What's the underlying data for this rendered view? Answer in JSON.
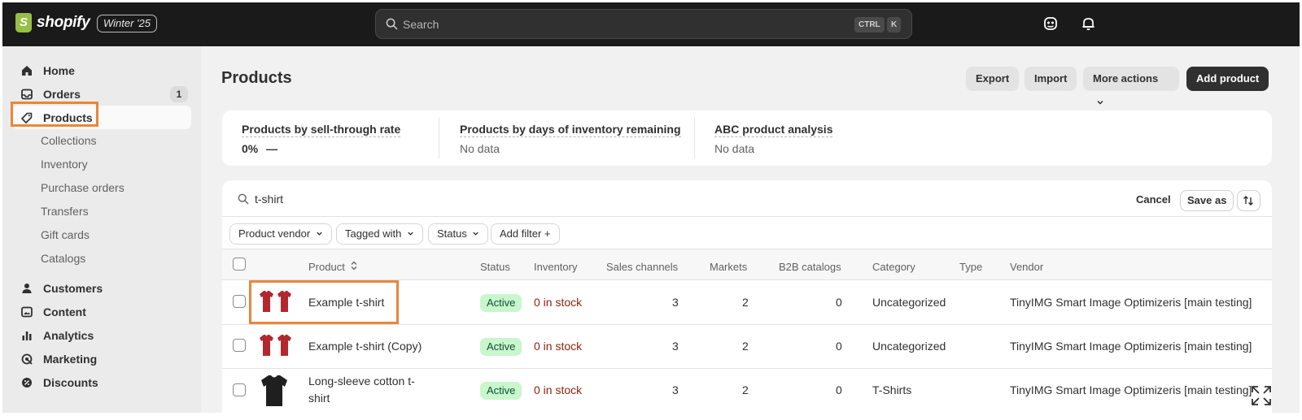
{
  "brand": {
    "name": "shopify",
    "edition": "Winter '25"
  },
  "topbar": {
    "search_placeholder": "Search",
    "shortcut": [
      "CTRL",
      "K"
    ],
    "icons": [
      "store-icon",
      "bell-icon"
    ]
  },
  "sidebar": {
    "items": [
      {
        "label": "Home",
        "icon": "home-icon"
      },
      {
        "label": "Orders",
        "icon": "inbox-icon",
        "badge": "1"
      },
      {
        "label": "Products",
        "icon": "tag-icon"
      },
      {
        "label": "Customers",
        "icon": "person-icon"
      },
      {
        "label": "Content",
        "icon": "image-icon"
      },
      {
        "label": "Analytics",
        "icon": "bar-chart-icon"
      },
      {
        "label": "Marketing",
        "icon": "target-icon"
      },
      {
        "label": "Discounts",
        "icon": "discount-icon"
      }
    ],
    "product_subitems": [
      "Collections",
      "Inventory",
      "Purchase orders",
      "Transfers",
      "Gift cards",
      "Catalogs"
    ]
  },
  "page": {
    "title": "Products",
    "actions": {
      "export": "Export",
      "import": "Import",
      "more": "More actions",
      "add": "Add product"
    }
  },
  "metrics": [
    {
      "title": "Products by sell-through rate",
      "value": "0%",
      "trend": "—"
    },
    {
      "title": "Products by days of inventory remaining",
      "value": "No data"
    },
    {
      "title": "ABC product analysis",
      "value": "No data"
    }
  ],
  "table_toolbar": {
    "query": "t-shirt",
    "cancel": "Cancel",
    "save_as": "Save as",
    "filters": [
      "Product vendor",
      "Tagged with",
      "Status"
    ],
    "add_filter": "Add filter +"
  },
  "table": {
    "headers": [
      "Product",
      "Status",
      "Inventory",
      "Sales channels",
      "Markets",
      "B2B catalogs",
      "Category",
      "Type",
      "Vendor"
    ],
    "sort_icon": "sort-icon",
    "rows": [
      {
        "product": "Example t-shirt",
        "thumb": "red-tshirts",
        "status": "Active",
        "inventory": "0 in stock",
        "sales_channels": "3",
        "markets": "2",
        "b2b": "0",
        "category": "Uncategorized",
        "type": "",
        "vendor": "TinyIMG Smart Image Optimizeris [main testing]"
      },
      {
        "product": "Example t-shirt (Copy)",
        "thumb": "red-tshirts",
        "status": "Active",
        "inventory": "0 in stock",
        "sales_channels": "3",
        "markets": "2",
        "b2b": "0",
        "category": "Uncategorized",
        "type": "",
        "vendor": "TinyIMG Smart Image Optimizeris [main testing]"
      },
      {
        "product_line1": "Long-sleeve cotton t-",
        "product_line2": "shirt",
        "thumb": "black-tshirt",
        "status": "Active",
        "inventory": "0 in stock",
        "sales_channels": "3",
        "markets": "2",
        "b2b": "0",
        "category": "T-Shirts",
        "type": "",
        "vendor": "TinyIMG Smart Image Optimizeris [main testing]"
      }
    ]
  },
  "colors": {
    "highlight": "#e8873a",
    "topbar": "#1a1a1a",
    "active_pill": "#c9f6cd",
    "stock_text": "#8e1f0b"
  }
}
